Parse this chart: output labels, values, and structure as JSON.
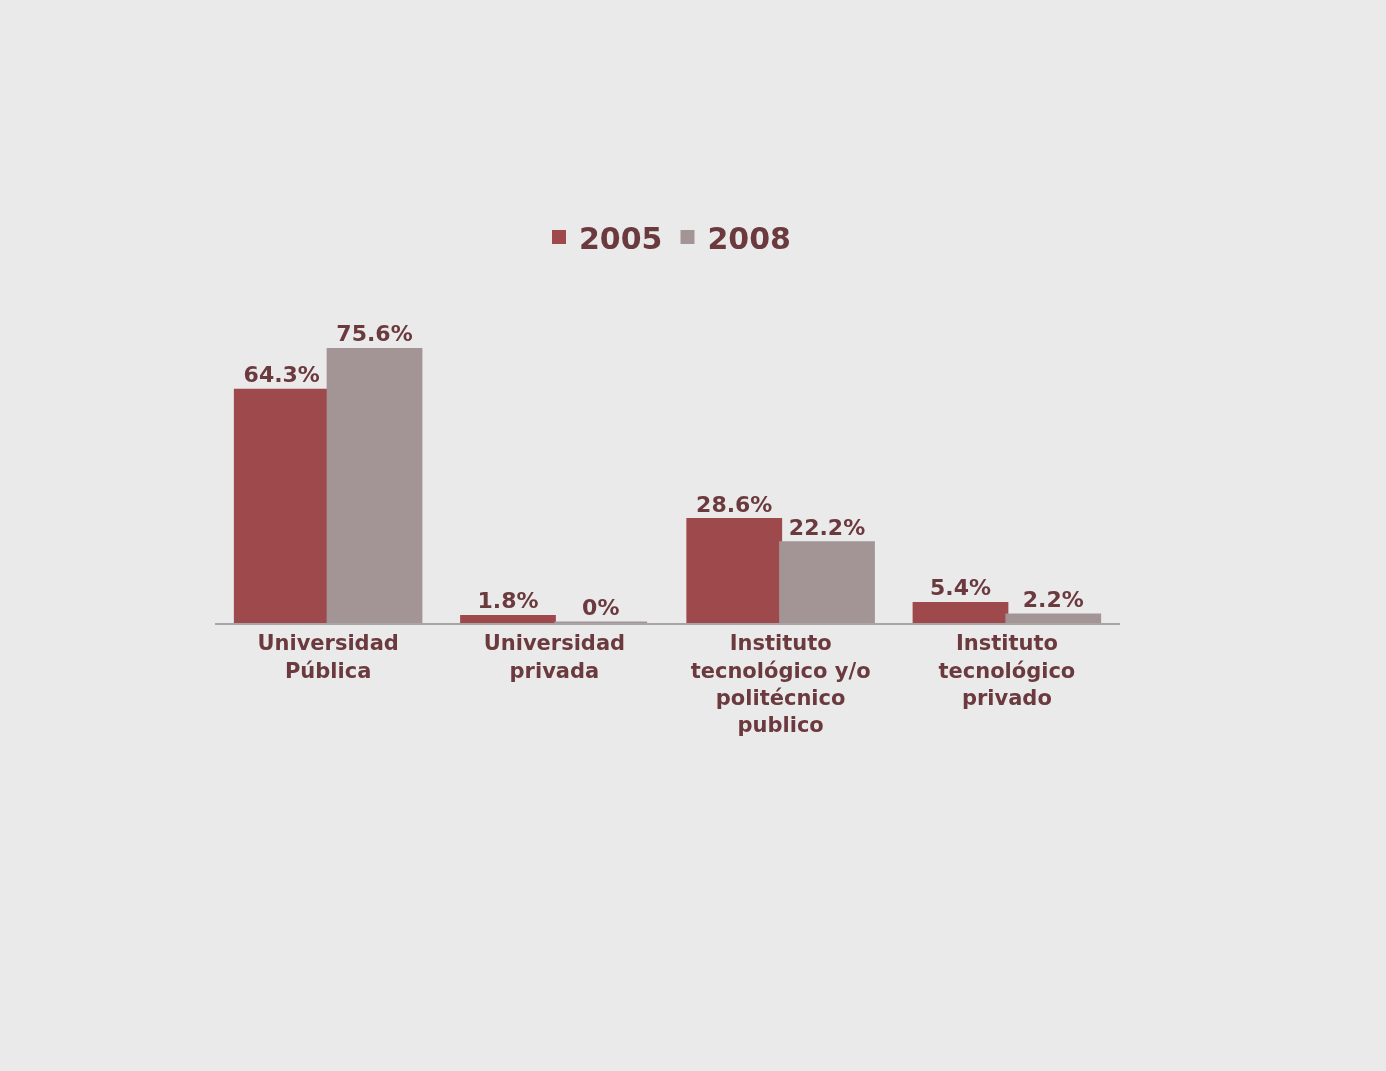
{
  "chart_data": {
    "type": "bar",
    "categories": [
      "Universidad Pública",
      "Universidad privada",
      "Instituto tecnológico y/o politécnico publico",
      "Instituto tecnológico privado"
    ],
    "series": [
      {
        "name": "2005",
        "color": "#9e4a4c",
        "values": [
          64.3,
          1.8,
          28.6,
          5.4
        ],
        "value_labels": [
          "64.3%",
          "1.8%",
          "28.6%",
          "5.4%"
        ]
      },
      {
        "name": "2008",
        "color": "#a39596",
        "values": [
          75.6,
          0,
          22.2,
          2.2
        ],
        "value_labels": [
          "75.6%",
          "0%",
          "22.2%",
          "2.2%"
        ]
      }
    ],
    "legend": "top",
    "grid": false,
    "tick_labels": "x"
  }
}
